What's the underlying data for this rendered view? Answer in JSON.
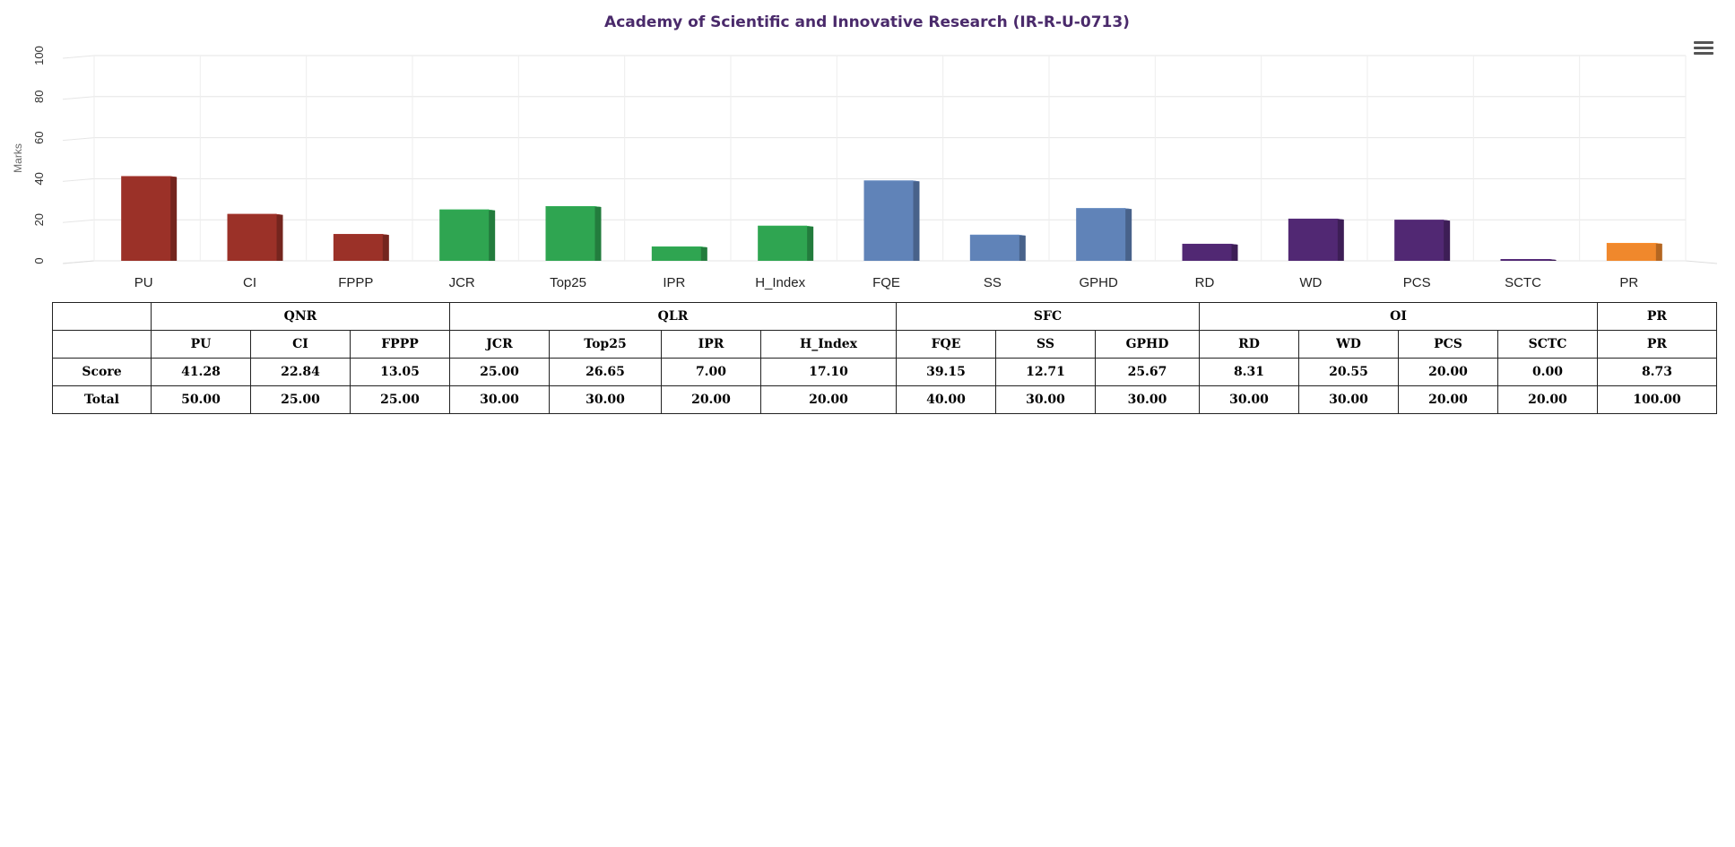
{
  "chart_data": {
    "type": "bar",
    "title": "Academy of Scientific and Innovative Research (IR-R-U-0713)",
    "ylabel": "Marks",
    "xlabel": "",
    "ylim": [
      0,
      100
    ],
    "yticks": [
      0,
      20,
      40,
      60,
      80,
      100
    ],
    "grid": true,
    "categories": [
      "PU",
      "CI",
      "FPPP",
      "JCR",
      "Top25",
      "IPR",
      "H_Index",
      "FQE",
      "SS",
      "GPHD",
      "RD",
      "WD",
      "PCS",
      "SCTC",
      "PR"
    ],
    "values": [
      41.28,
      22.84,
      13.05,
      25.0,
      26.65,
      7.0,
      17.1,
      39.15,
      12.71,
      25.67,
      8.31,
      20.55,
      20.0,
      0.0,
      8.73
    ],
    "colors": [
      "#9b3128",
      "#9b3128",
      "#9b3128",
      "#2fa551",
      "#2fa551",
      "#2fa551",
      "#2fa551",
      "#6083b8",
      "#6083b8",
      "#6083b8",
      "#512873",
      "#512873",
      "#512873",
      "#512873",
      "#f0882c"
    ],
    "title_color": "#4a2a6b"
  },
  "table": {
    "groups": [
      {
        "label": "",
        "span": 1
      },
      {
        "label": "QNR",
        "span": 3
      },
      {
        "label": "QLR",
        "span": 4
      },
      {
        "label": "SFC",
        "span": 3
      },
      {
        "label": "OI",
        "span": 4
      },
      {
        "label": "PR",
        "span": 1
      }
    ],
    "headers": [
      "",
      "PU",
      "CI",
      "FPPP",
      "JCR",
      "Top25",
      "IPR",
      "H_Index",
      "FQE",
      "SS",
      "GPHD",
      "RD",
      "WD",
      "PCS",
      "SCTC",
      "PR"
    ],
    "rows": [
      {
        "label": "Score",
        "values": [
          "41.28",
          "22.84",
          "13.05",
          "25.00",
          "26.65",
          "7.00",
          "17.10",
          "39.15",
          "12.71",
          "25.67",
          "8.31",
          "20.55",
          "20.00",
          "0.00",
          "8.73"
        ]
      },
      {
        "label": "Total",
        "values": [
          "50.00",
          "25.00",
          "25.00",
          "30.00",
          "30.00",
          "20.00",
          "20.00",
          "40.00",
          "30.00",
          "30.00",
          "30.00",
          "30.00",
          "20.00",
          "20.00",
          "100.00"
        ]
      }
    ]
  },
  "menu": {
    "icon": "hamburger-menu-icon"
  }
}
